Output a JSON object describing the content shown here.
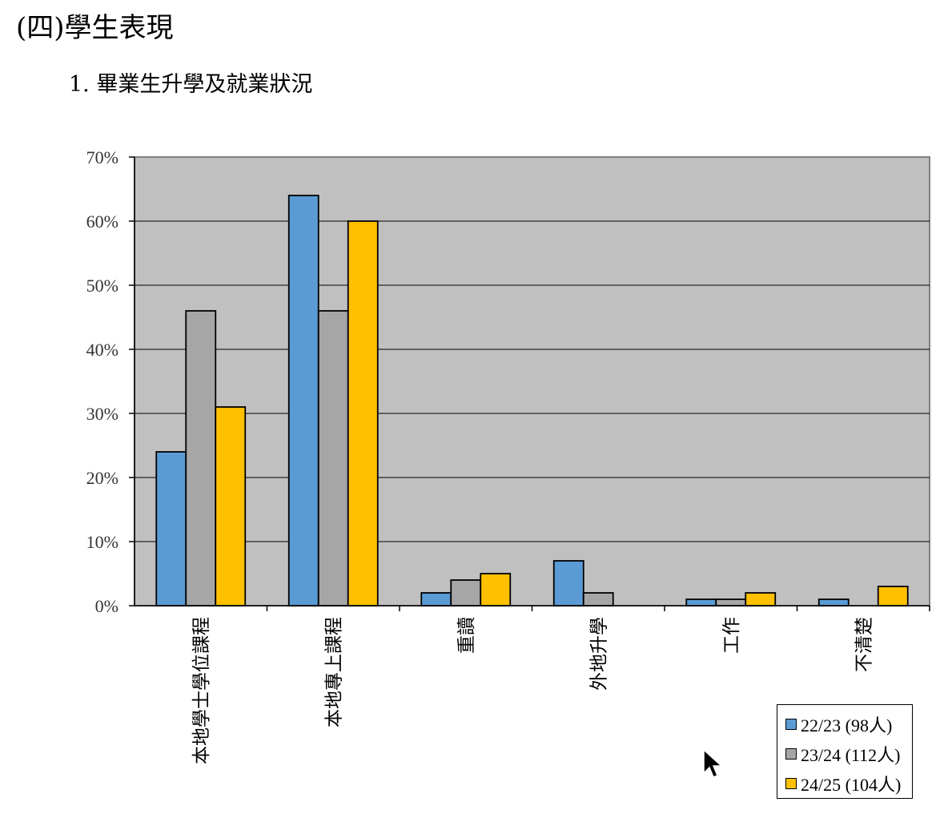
{
  "section_title": "(四)學生表現",
  "subtitle": "1.   畢業生升學及就業狀況",
  "chart_data": {
    "type": "bar",
    "title": "",
    "xlabel": "",
    "ylabel": "",
    "ylim": [
      0,
      70
    ],
    "y_ticks": [
      "0%",
      "10%",
      "20%",
      "30%",
      "40%",
      "50%",
      "60%",
      "70%"
    ],
    "grid": true,
    "legend_position": "bottom-right",
    "plot_background": "#c0c0c0",
    "categories": [
      "本地學士學位課程",
      "本地專上課程",
      "重讀",
      "外地升學",
      "工作",
      "不清楚"
    ],
    "series": [
      {
        "name": "22/23 (98人)",
        "color": "#5b9bd5",
        "values": [
          24,
          64,
          2,
          7,
          1,
          1
        ]
      },
      {
        "name": "23/24 (112人)",
        "color": "#a6a6a6",
        "values": [
          46,
          46,
          4,
          2,
          1,
          0
        ]
      },
      {
        "name": "24/25 (104人)",
        "color": "#ffc000",
        "values": [
          31,
          60,
          5,
          0,
          2,
          3
        ]
      }
    ]
  }
}
